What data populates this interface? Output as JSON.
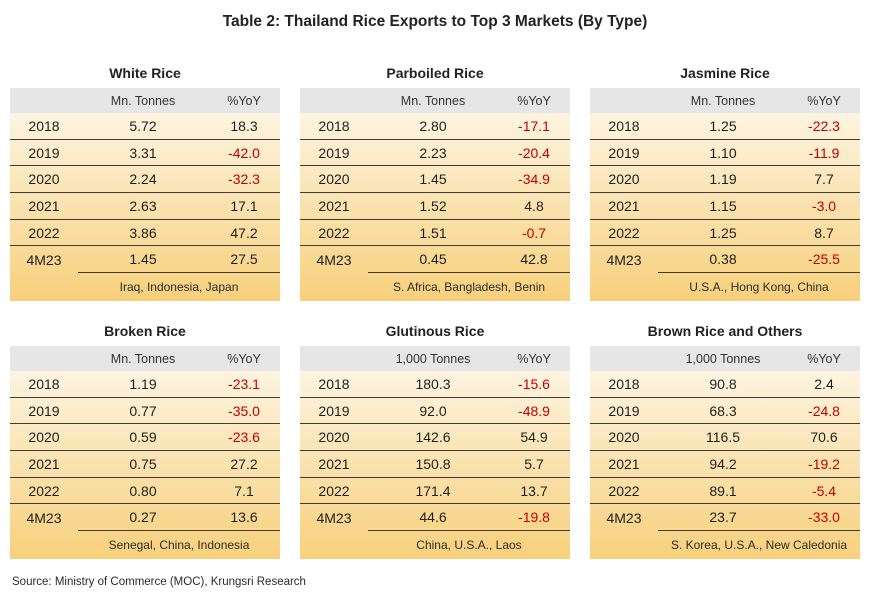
{
  "title": "Table 2: Thailand Rice Exports to Top 3 Markets (By Type)",
  "source": "Source: Ministry of Commerce (MOC), Krungsri Research",
  "colors": {
    "negative": "#c00000",
    "text": "#1f1f1f",
    "header_background": "#e7e6e6",
    "body_gradient_top": "#fdf4e1",
    "body_gradient_bottom": "#f7d07b"
  },
  "chart_data": [
    {
      "type": "table",
      "title": "White Rice",
      "unit_header": "Mn. Tonnes",
      "change_header": "%YoY",
      "rows": [
        {
          "period": "2018",
          "volume": 5.72,
          "yoy": 18.3
        },
        {
          "period": "2019",
          "volume": 3.31,
          "yoy": -42.0
        },
        {
          "period": "2020",
          "volume": 2.24,
          "yoy": -32.3
        },
        {
          "period": "2021",
          "volume": 2.63,
          "yoy": 17.1
        },
        {
          "period": "2022",
          "volume": 3.86,
          "yoy": 47.2
        },
        {
          "period": "4M23",
          "volume": 1.45,
          "yoy": 27.5
        }
      ],
      "top_markets": "Iraq, Indonesia, Japan"
    },
    {
      "type": "table",
      "title": "Parboiled Rice",
      "unit_header": "Mn. Tonnes",
      "change_header": "%YoY",
      "rows": [
        {
          "period": "2018",
          "volume": 2.8,
          "yoy": -17.1
        },
        {
          "period": "2019",
          "volume": 2.23,
          "yoy": -20.4
        },
        {
          "period": "2020",
          "volume": 1.45,
          "yoy": -34.9
        },
        {
          "period": "2021",
          "volume": 1.52,
          "yoy": 4.8
        },
        {
          "period": "2022",
          "volume": 1.51,
          "yoy": -0.7
        },
        {
          "period": "4M23",
          "volume": 0.45,
          "yoy": 42.8
        }
      ],
      "top_markets": "S. Africa, Bangladesh, Benin"
    },
    {
      "type": "table",
      "title": "Jasmine Rice",
      "unit_header": "Mn. Tonnes",
      "change_header": "%YoY",
      "rows": [
        {
          "period": "2018",
          "volume": 1.25,
          "yoy": -22.3
        },
        {
          "period": "2019",
          "volume": 1.1,
          "yoy": -11.9
        },
        {
          "period": "2020",
          "volume": 1.19,
          "yoy": 7.7
        },
        {
          "period": "2021",
          "volume": 1.15,
          "yoy": -3.0
        },
        {
          "period": "2022",
          "volume": 1.25,
          "yoy": 8.7
        },
        {
          "period": "4M23",
          "volume": 0.38,
          "yoy": -25.5
        }
      ],
      "top_markets": "U.S.A., Hong Kong, China"
    },
    {
      "type": "table",
      "title": "Broken Rice",
      "unit_header": "Mn. Tonnes",
      "change_header": "%YoY",
      "rows": [
        {
          "period": "2018",
          "volume": 1.19,
          "yoy": -23.1
        },
        {
          "period": "2019",
          "volume": 0.77,
          "yoy": -35.0
        },
        {
          "period": "2020",
          "volume": 0.59,
          "yoy": -23.6
        },
        {
          "period": "2021",
          "volume": 0.75,
          "yoy": 27.2
        },
        {
          "period": "2022",
          "volume": 0.8,
          "yoy": 7.1
        },
        {
          "period": "4M23",
          "volume": 0.27,
          "yoy": 13.6
        }
      ],
      "top_markets": "Senegal, China, Indonesia"
    },
    {
      "type": "table",
      "title": "Glutinous Rice",
      "unit_header": "1,000 Tonnes",
      "change_header": "%YoY",
      "rows": [
        {
          "period": "2018",
          "volume": 180.3,
          "yoy": -15.6
        },
        {
          "period": "2019",
          "volume": 92.0,
          "yoy": -48.9
        },
        {
          "period": "2020",
          "volume": 142.6,
          "yoy": 54.9
        },
        {
          "period": "2021",
          "volume": 150.8,
          "yoy": 5.7
        },
        {
          "period": "2022",
          "volume": 171.4,
          "yoy": 13.7
        },
        {
          "period": "4M23",
          "volume": 44.6,
          "yoy": -19.8
        }
      ],
      "top_markets": "China, U.S.A., Laos"
    },
    {
      "type": "table",
      "title": "Brown Rice and Others",
      "unit_header": "1,000 Tonnes",
      "change_header": "%YoY",
      "rows": [
        {
          "period": "2018",
          "volume": 90.8,
          "yoy": 2.4
        },
        {
          "period": "2019",
          "volume": 68.3,
          "yoy": -24.8
        },
        {
          "period": "2020",
          "volume": 116.5,
          "yoy": 70.6
        },
        {
          "period": "2021",
          "volume": 94.2,
          "yoy": -19.2
        },
        {
          "period": "2022",
          "volume": 89.1,
          "yoy": -5.4
        },
        {
          "period": "4M23",
          "volume": 23.7,
          "yoy": -33.0
        }
      ],
      "top_markets": "S. Korea, U.S.A., New Caledonia"
    }
  ]
}
